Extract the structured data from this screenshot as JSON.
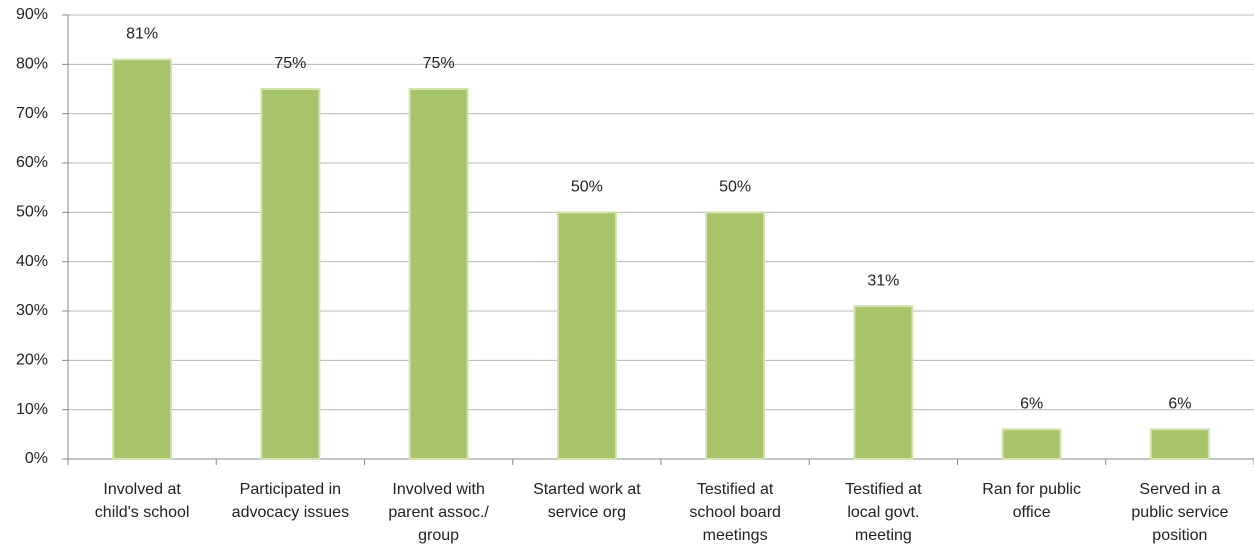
{
  "chart_data": {
    "type": "bar",
    "categories": [
      "Involved at\nchild's school",
      "Participated in\nadvocacy issues",
      "Involved with\nparent assoc./\ngroup",
      "Started work at\nservice org",
      "Testified at\nschool board\nmeetings",
      "Testified at\nlocal govt.\nmeeting",
      "Ran for public\noffice",
      "Served in a\npublic service\nposition"
    ],
    "values": [
      81,
      75,
      75,
      50,
      50,
      31,
      6,
      6
    ],
    "value_labels": [
      "81%",
      "75%",
      "75%",
      "50%",
      "50%",
      "31%",
      "6%",
      "6%"
    ],
    "color": "#a8c46a",
    "ylim": [
      0,
      90
    ],
    "yticks": [
      {
        "value": 0,
        "label": "0%"
      },
      {
        "value": 10,
        "label": "10%"
      },
      {
        "value": 20,
        "label": "20%"
      },
      {
        "value": 30,
        "label": "30%"
      },
      {
        "value": 40,
        "label": "40%"
      },
      {
        "value": 50,
        "label": "50%"
      },
      {
        "value": 60,
        "label": "60%"
      },
      {
        "value": 70,
        "label": "70%"
      },
      {
        "value": 80,
        "label": "80%"
      },
      {
        "value": 90,
        "label": "90%"
      }
    ],
    "grid": true
  }
}
